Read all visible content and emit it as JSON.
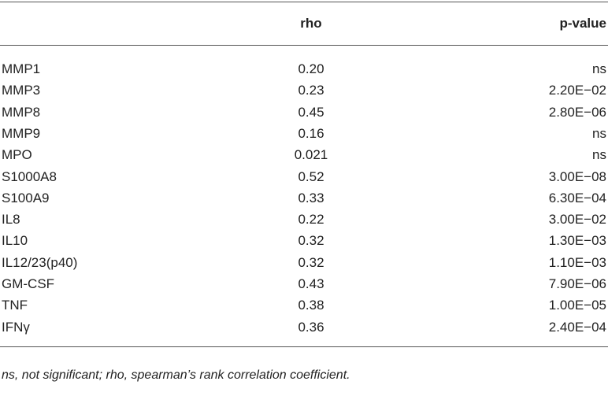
{
  "table": {
    "header": [
      "rho",
      "p-value"
    ],
    "rows": [
      [
        "MMP1",
        "0.20",
        "ns"
      ],
      [
        "MMP3",
        "0.23",
        "2.20E−02"
      ],
      [
        "MMP8",
        "0.45",
        "2.80E−06"
      ],
      [
        "MMP9",
        "0.16",
        "ns"
      ],
      [
        "MPO",
        "0.021",
        "ns"
      ],
      [
        "S1000A8",
        "0.52",
        "3.00E−08"
      ],
      [
        "S100A9",
        "0.33",
        "6.30E−04"
      ],
      [
        "IL8",
        "0.22",
        "3.00E−02"
      ],
      [
        "IL10",
        "0.32",
        "1.30E−03"
      ],
      [
        "IL12/23(p40)",
        "0.32",
        "1.10E−03"
      ],
      [
        "GM-CSF",
        "0.43",
        "7.90E−06"
      ],
      [
        "TNF",
        "0.38",
        "1.00E−05"
      ],
      [
        "IFNγ",
        "0.36",
        "2.40E−04"
      ]
    ],
    "footnote": "ns, not significant; rho, spearman’s rank correlation coefficient."
  }
}
